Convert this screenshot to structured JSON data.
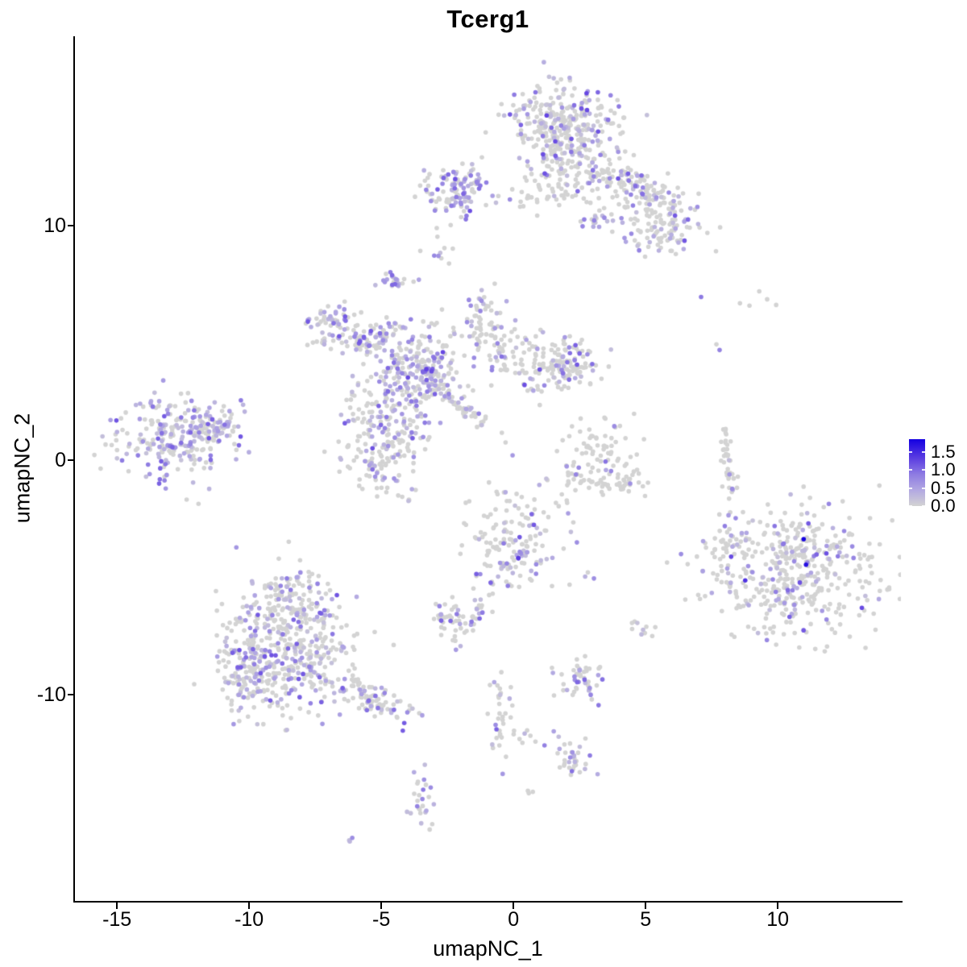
{
  "title": "Tcerg1",
  "chart_data": {
    "type": "scatter",
    "title": "Tcerg1",
    "xlabel": "umapNC_1",
    "ylabel": "umapNC_2",
    "x_ticks": [
      -15,
      -10,
      -5,
      0,
      5,
      10
    ],
    "y_ticks": [
      -10,
      0,
      10
    ],
    "xlim": [
      -16.59,
      14.66
    ],
    "ylim": [
      -18.77,
      18.05
    ],
    "grid": false,
    "legend_position": "right",
    "colorbar": {
      "values": [
        1.5,
        1.0,
        0.5,
        0.0
      ],
      "bar_max": 1.85,
      "low_color": "#D3D3D3",
      "high_color": "#1400E1",
      "domain": [
        0,
        1.8
      ],
      "ramp": [
        [
          0,
          211,
          211,
          211
        ],
        [
          0.25,
          178,
          168,
          226
        ],
        [
          0.5,
          141,
          122,
          226
        ],
        [
          0.78,
          96,
          64,
          226
        ],
        [
          1,
          20,
          0,
          225
        ]
      ]
    },
    "point_radius_px": 2.8,
    "seed": 11,
    "clusters": [
      {
        "cx": 1.77,
        "cy": 14.38,
        "sx": 0.95,
        "sy": 0.82,
        "rot": 0,
        "n": 280,
        "frac": 0.25,
        "emax": 1.4
      },
      {
        "cx": 2.23,
        "cy": 12.5,
        "sx": 0.91,
        "sy": 0.86,
        "rot": 0,
        "n": 130,
        "frac": 0.25,
        "emax": 1.3
      },
      {
        "cx": 4.82,
        "cy": 11.47,
        "sx": 1.0,
        "sy": 0.45,
        "rot": -30,
        "n": 150,
        "frac": 0.3,
        "emax": 1.3
      },
      {
        "cx": 5.43,
        "cy": 9.76,
        "sx": 0.79,
        "sy": 0.62,
        "rot": 0,
        "n": 85,
        "frac": 0.35,
        "emax": 1.3
      },
      {
        "cx": 0.7,
        "cy": 11.2,
        "sx": 0.9,
        "sy": 0.18,
        "rot": 0,
        "n": 25,
        "frac": 0.2,
        "emax": 1.0
      },
      {
        "cx": 3.17,
        "cy": 10.24,
        "sx": 0.28,
        "sy": 0.26,
        "rot": 0,
        "n": 18,
        "frac": 0.6,
        "emax": 1.0
      },
      {
        "cx": -2.2,
        "cy": 11.45,
        "sx": 0.55,
        "sy": 0.62,
        "rot": 0,
        "n": 115,
        "frac": 0.45,
        "emax": 1.3
      },
      {
        "cx": -2.8,
        "cy": 8.73,
        "sx": 0.24,
        "sy": 0.48,
        "rot": 0,
        "n": 10,
        "frac": 0.3,
        "emax": 0.9
      },
      {
        "cx": -4.51,
        "cy": 7.5,
        "sx": 0.26,
        "sy": 0.33,
        "rot": 0,
        "n": 22,
        "frac": 0.5,
        "emax": 1.1
      },
      {
        "cx": -6.98,
        "cy": 5.89,
        "sx": 0.61,
        "sy": 0.55,
        "rot": 0,
        "n": 65,
        "frac": 0.45,
        "emax": 1.2
      },
      {
        "cx": -5.34,
        "cy": 5.27,
        "sx": 0.65,
        "sy": 0.3,
        "rot": 23,
        "n": 55,
        "frac": 0.35,
        "emax": 1.2
      },
      {
        "cx": -3.81,
        "cy": 3.9,
        "sx": 1.1,
        "sy": 1.03,
        "rot": 0,
        "n": 230,
        "frac": 0.4,
        "emax": 1.4
      },
      {
        "cx": -3.2,
        "cy": 3.49,
        "sx": 0.49,
        "sy": 0.48,
        "rot": 0,
        "n": 70,
        "frac": 0.55,
        "emax": 1.5
      },
      {
        "cx": -1.07,
        "cy": 5.55,
        "sx": 0.49,
        "sy": 0.75,
        "rot": 0,
        "n": 60,
        "frac": 0.3,
        "emax": 1.2
      },
      {
        "cx": 0.76,
        "cy": 4.25,
        "sx": 1.04,
        "sy": 0.68,
        "rot": 0,
        "n": 120,
        "frac": 0.25,
        "emax": 1.3
      },
      {
        "cx": 2.2,
        "cy": 4.0,
        "sx": 0.5,
        "sy": 0.55,
        "rot": 0,
        "n": 70,
        "frac": 0.25,
        "emax": 1.2
      },
      {
        "cx": -1.59,
        "cy": 1.99,
        "sx": 0.95,
        "sy": 0.15,
        "rot": -42,
        "n": 40,
        "frac": 0.3,
        "emax": 1.2
      },
      {
        "cx": -4.79,
        "cy": 1.3,
        "sx": 0.91,
        "sy": 0.89,
        "rot": 0,
        "n": 140,
        "frac": 0.35,
        "emax": 1.3
      },
      {
        "cx": -5.27,
        "cy": -0.24,
        "sx": 0.49,
        "sy": 0.45,
        "rot": 0,
        "n": 45,
        "frac": 0.35,
        "emax": 1.2
      },
      {
        "cx": -4.33,
        "cy": -1.54,
        "sx": 0.5,
        "sy": 0.45,
        "rot": 0,
        "n": 12,
        "frac": 0.25,
        "emax": 0.9
      },
      {
        "cx": -1.22,
        "cy": 6.3,
        "sx": 0.15,
        "sy": 0.5,
        "rot": 0,
        "n": 10,
        "frac": 0.3,
        "emax": 0.9
      },
      {
        "cx": -12.87,
        "cy": 0.92,
        "sx": 1.1,
        "sy": 0.92,
        "rot": 0,
        "n": 240,
        "frac": 0.5,
        "emax": 1.3
      },
      {
        "cx": -11.28,
        "cy": 1.44,
        "sx": 0.49,
        "sy": 0.38,
        "rot": 0,
        "n": 55,
        "frac": 0.6,
        "emax": 1.3
      },
      {
        "cx": -0.03,
        "cy": -3.63,
        "sx": 0.85,
        "sy": 1.03,
        "rot": 0,
        "n": 150,
        "frac": 0.3,
        "emax": 1.7
      },
      {
        "cx": -1.3,
        "cy": -6.35,
        "sx": 0.8,
        "sy": 0.1,
        "rot": 66,
        "n": 28,
        "frac": 0.35,
        "emax": 1.1
      },
      {
        "cx": 2.77,
        "cy": -5.07,
        "sx": 0.12,
        "sy": 0.12,
        "rot": 0,
        "n": 3,
        "frac": 0.65,
        "emax": 0.9
      },
      {
        "cx": 1.92,
        "cy": -2.23,
        "sx": 0.4,
        "sy": 0.5,
        "rot": 0,
        "n": 8,
        "frac": 0.2,
        "emax": 0.8
      },
      {
        "cx": 3.29,
        "cy": 0.34,
        "sx": 0.67,
        "sy": 0.58,
        "rot": 0,
        "n": 65,
        "frac": 0.12,
        "emax": 1.2
      },
      {
        "cx": 2.3,
        "cy": -0.75,
        "sx": 0.35,
        "sy": 0.3,
        "rot": 0,
        "n": 18,
        "frac": 0.06,
        "emax": 0.8
      },
      {
        "cx": 3.4,
        "cy": -1.15,
        "sx": 0.5,
        "sy": 0.22,
        "rot": 0,
        "n": 25,
        "frac": 0.06,
        "emax": 0.8
      },
      {
        "cx": 4.4,
        "cy": -0.75,
        "sx": 0.3,
        "sy": 0.3,
        "rot": 0,
        "n": 18,
        "frac": 0.1,
        "emax": 0.8
      },
      {
        "cx": 10.76,
        "cy": -4.66,
        "sx": 1.46,
        "sy": 1.44,
        "rot": 0,
        "n": 430,
        "frac": 0.25,
        "emax": 1.5
      },
      {
        "cx": 8.2,
        "cy": -3.84,
        "sx": 0.4,
        "sy": 0.75,
        "rot": 0,
        "n": 45,
        "frac": 0.3,
        "emax": 1.2
      },
      {
        "cx": 8.0,
        "cy": 0.9,
        "sx": 0.15,
        "sy": 0.35,
        "rot": 0,
        "n": 12,
        "frac": 0.1,
        "emax": 0.9
      },
      {
        "cx": 8.05,
        "cy": 0.1,
        "sx": 0.13,
        "sy": 0.4,
        "rot": 0,
        "n": 14,
        "frac": 0.12,
        "emax": 0.9
      },
      {
        "cx": 8.3,
        "cy": -0.75,
        "sx": 0.2,
        "sy": 0.3,
        "rot": 0,
        "n": 12,
        "frac": 0.1,
        "emax": 0.9
      },
      {
        "cx": -8.75,
        "cy": -5.99,
        "sx": 0.85,
        "sy": 0.68,
        "rot": 0,
        "n": 120,
        "frac": 0.28,
        "emax": 1.2
      },
      {
        "cx": -8.45,
        "cy": -8.29,
        "sx": 1.37,
        "sy": 1.2,
        "rot": 0,
        "n": 400,
        "frac": 0.3,
        "emax": 1.3
      },
      {
        "cx": -10.09,
        "cy": -9.32,
        "sx": 0.52,
        "sy": 0.86,
        "rot": 0,
        "n": 90,
        "frac": 0.35,
        "emax": 1.3
      },
      {
        "cx": -5.21,
        "cy": -10.21,
        "sx": 0.9,
        "sy": 0.3,
        "rot": -28,
        "n": 85,
        "frac": 0.3,
        "emax": 1.2
      },
      {
        "cx": -2.41,
        "cy": -6.78,
        "sx": 0.4,
        "sy": 0.45,
        "rot": 0,
        "n": 38,
        "frac": 0.3,
        "emax": 1.1
      },
      {
        "cx": -0.46,
        "cy": -11.3,
        "sx": 0.27,
        "sy": 0.96,
        "rot": 0,
        "n": 34,
        "frac": 0.35,
        "emax": 1.2
      },
      {
        "cx": 0.95,
        "cy": -11.92,
        "sx": 0.67,
        "sy": 0.27,
        "rot": 0,
        "n": 12,
        "frac": 0.25,
        "emax": 0.9
      },
      {
        "cx": 2.41,
        "cy": -9.42,
        "sx": 0.46,
        "sy": 0.48,
        "rot": 0,
        "n": 48,
        "frac": 0.28,
        "emax": 1.1
      },
      {
        "cx": 2.41,
        "cy": -12.71,
        "sx": 0.37,
        "sy": 0.38,
        "rot": 0,
        "n": 30,
        "frac": 0.3,
        "emax": 1.1
      },
      {
        "cx": -3.45,
        "cy": -14.55,
        "sx": 0.24,
        "sy": 0.65,
        "rot": 0,
        "n": 26,
        "frac": 0.55,
        "emax": 1.1
      },
      {
        "cx": -6.1,
        "cy": -16.2,
        "sx": 0.12,
        "sy": 0.08,
        "rot": 0,
        "n": 3,
        "frac": 0.5,
        "emax": 0.9
      },
      {
        "cx": 0.58,
        "cy": -14.14,
        "sx": 0.1,
        "sy": 0.1,
        "rot": 0,
        "n": 3,
        "frac": 0.5,
        "emax": 0.9
      },
      {
        "cx": 4.91,
        "cy": -7.16,
        "sx": 0.25,
        "sy": 0.25,
        "rot": 0,
        "n": 10,
        "frac": 0.45,
        "emax": 1.0
      }
    ],
    "singles": [
      {
        "x": 7.1,
        "y": 6.95,
        "e": 0.9
      },
      {
        "x": 8.57,
        "y": 6.68,
        "e": 0
      },
      {
        "x": 9.3,
        "y": 7.19,
        "e": 0
      },
      {
        "x": 9.6,
        "y": 6.85,
        "e": 0
      },
      {
        "x": 8.93,
        "y": 6.58,
        "e": 0
      },
      {
        "x": 9.94,
        "y": 6.61,
        "e": 0
      },
      {
        "x": 7.68,
        "y": 4.93,
        "e": 0
      },
      {
        "x": 7.8,
        "y": 4.69,
        "e": 0.8
      },
      {
        "x": 10.98,
        "y": -3.36,
        "e": 1.8
      },
      {
        "x": 11.07,
        "y": -4.45,
        "e": 1.7
      }
    ]
  }
}
